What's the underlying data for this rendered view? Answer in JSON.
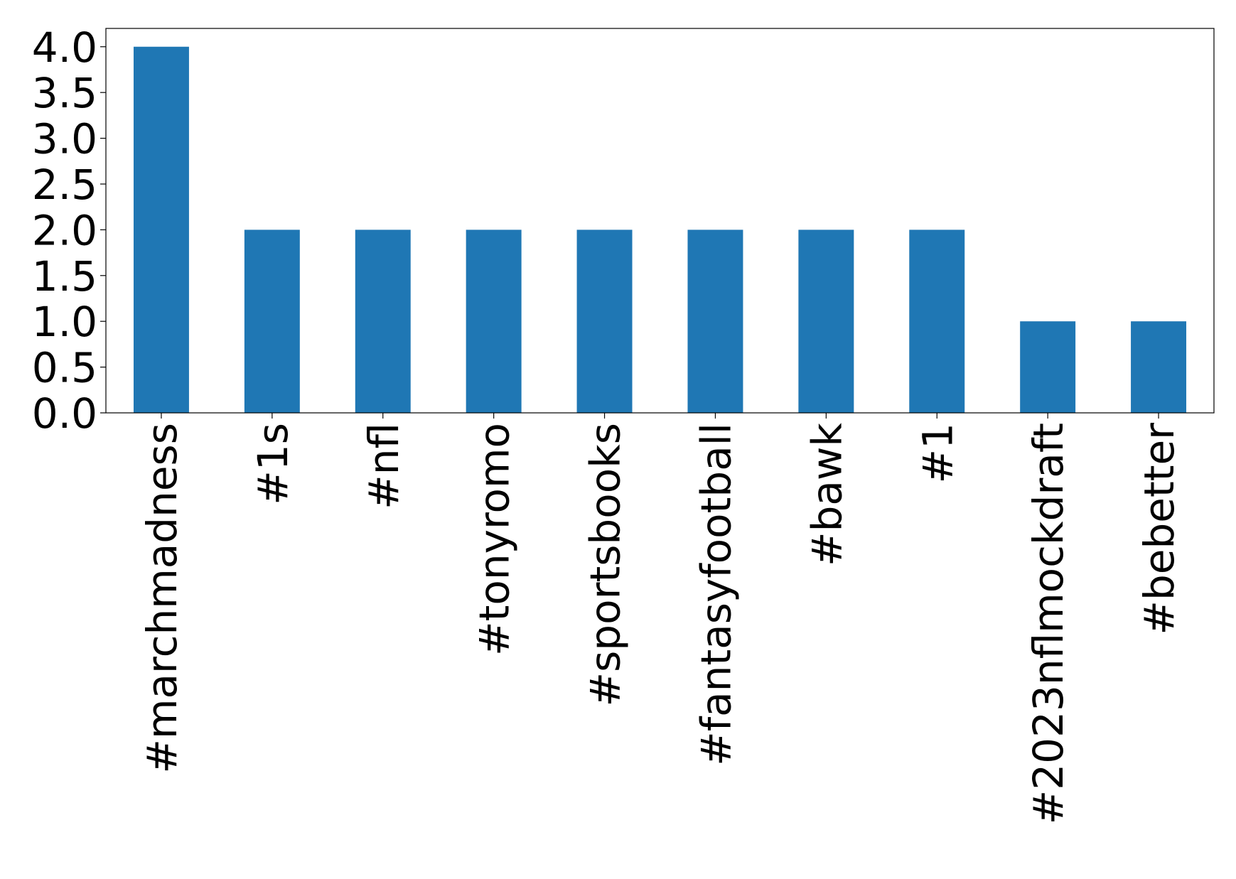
{
  "chart_data": {
    "type": "bar",
    "categories": [
      "#marchmadness",
      "#1s",
      "#nfl",
      "#tonyromo",
      "#sportsbooks",
      "#fantasyfootball",
      "#bawk",
      "#1",
      "#2023nflmockdraft",
      "#bebetter"
    ],
    "values": [
      4,
      2,
      2,
      2,
      2,
      2,
      2,
      2,
      1,
      1
    ],
    "color": "#1f77b4",
    "ylim": [
      0,
      4.2
    ],
    "yticks": [
      {
        "value": 0,
        "label": "0.0"
      },
      {
        "value": 0.5,
        "label": "0.5"
      },
      {
        "value": 1,
        "label": "1.0"
      },
      {
        "value": 1.5,
        "label": "1.5"
      },
      {
        "value": 2,
        "label": "2.0"
      },
      {
        "value": 2.5,
        "label": "2.5"
      },
      {
        "value": 3,
        "label": "3.0"
      },
      {
        "value": 3.5,
        "label": "3.5"
      },
      {
        "value": 4,
        "label": "4.0"
      }
    ],
    "grid": false
  }
}
